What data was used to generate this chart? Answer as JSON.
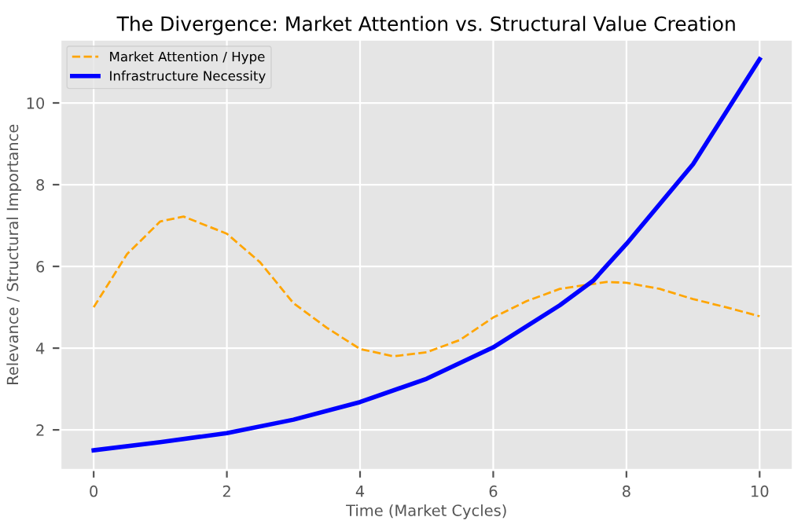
{
  "chart_data": {
    "type": "line",
    "title": "The Divergence: Market Attention vs. Structural Value Creation",
    "xlabel": "Time (Market Cycles)",
    "ylabel": "Relevance / Structural Importance",
    "xlim": [
      -0.5,
      10.5
    ],
    "ylim": [
      1.02,
      11.55
    ],
    "xticks": [
      0,
      2,
      4,
      6,
      8,
      10
    ],
    "yticks": [
      2,
      4,
      6,
      8,
      10
    ],
    "grid": true,
    "legend": "top left",
    "series": [
      {
        "name": "Market Attention / Hype",
        "color": "#ffa500",
        "line_style": "dashed",
        "x": [
          0,
          0.5,
          1,
          1.35,
          2,
          2.5,
          3,
          3.5,
          4,
          4.5,
          5,
          5.5,
          6,
          6.5,
          7,
          7.7,
          8,
          8.5,
          9,
          9.5,
          10
        ],
        "values": [
          5.0,
          6.3,
          7.1,
          7.22,
          6.8,
          6.1,
          5.1,
          4.5,
          3.98,
          3.8,
          3.9,
          4.2,
          4.75,
          5.15,
          5.45,
          5.62,
          5.6,
          5.45,
          5.2,
          5.0,
          4.78
        ]
      },
      {
        "name": "Infrastructure Necessity",
        "color": "#0000ff",
        "line_style": "solid",
        "x": [
          0,
          1,
          2,
          3,
          4,
          5,
          6,
          7,
          7.5,
          8,
          9,
          10
        ],
        "values": [
          1.5,
          1.7,
          1.92,
          2.25,
          2.68,
          3.25,
          4.02,
          5.05,
          5.65,
          6.55,
          8.5,
          11.07
        ]
      }
    ]
  }
}
